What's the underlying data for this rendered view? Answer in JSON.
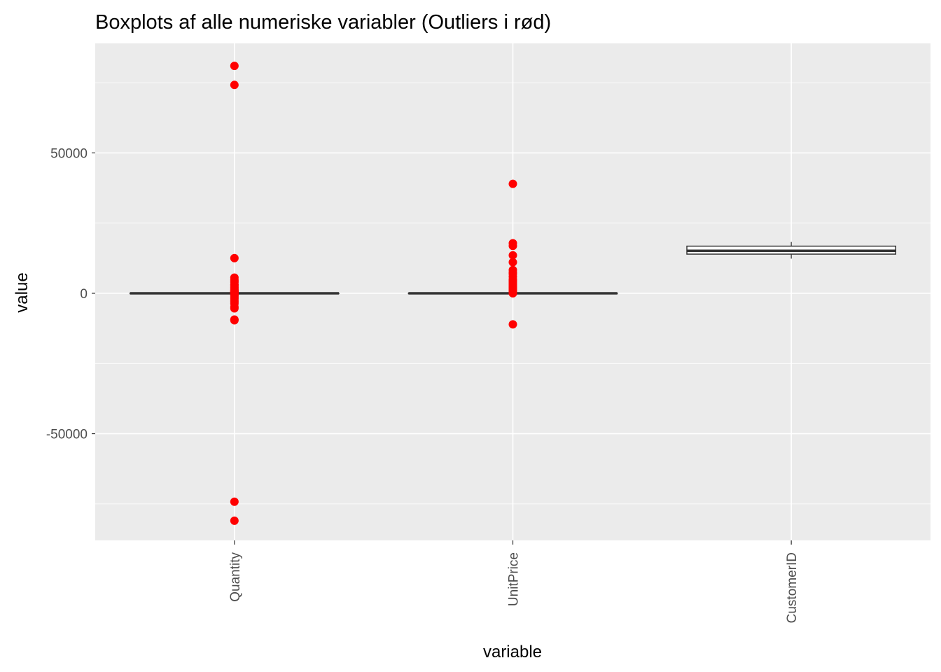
{
  "chart_data": {
    "type": "boxplot",
    "title": "Boxplots af alle numeriske variabler (Outliers i rød)",
    "xlabel": "variable",
    "ylabel": "value",
    "ylim": [
      -88000,
      89000
    ],
    "y_ticks": [
      -50000,
      0,
      50000
    ],
    "y_tick_labels": [
      "-50000",
      "0",
      "50000"
    ],
    "grid": true,
    "outlier_color": "#ff0000",
    "panel_color": "#ebebeb",
    "categories": [
      "Quantity",
      "UnitPrice",
      "CustomerID"
    ],
    "boxes": [
      {
        "name": "Quantity",
        "q1": 2,
        "median": 5,
        "q3": 12,
        "whisker_low": -13,
        "whisker_high": 27,
        "outliers": [
          80995,
          74215,
          12540,
          5568,
          4800,
          4300,
          3906,
          3114,
          2880,
          2400,
          1992,
          1600,
          1200,
          960,
          720,
          600,
          480,
          400,
          300,
          200,
          100,
          60,
          40,
          -40,
          -100,
          -300,
          -600,
          -1000,
          -1500,
          -2000,
          -2600,
          -3100,
          -3667,
          -4830,
          -5368,
          -9360,
          -9600,
          -74215,
          -80995
        ]
      },
      {
        "name": "UnitPrice",
        "q1": 1.25,
        "median": 2.08,
        "q3": 4.13,
        "whisker_low": 0,
        "whisker_high": 8.45,
        "outliers": [
          38970,
          17836,
          16888,
          13541,
          11062,
          8286,
          7427,
          6930,
          5942,
          4992,
          4505,
          4161,
          3612,
          3155,
          2653,
          2382,
          2033,
          1687,
          1398,
          1126,
          900,
          700,
          500,
          300,
          150,
          50,
          12,
          -11062
        ]
      },
      {
        "name": "CustomerID",
        "q1": 13953,
        "median": 15152,
        "q3": 16791,
        "whisker_low": 12346,
        "whisker_high": 18287,
        "outliers": []
      }
    ]
  }
}
